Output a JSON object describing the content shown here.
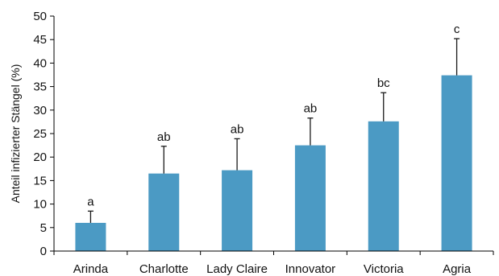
{
  "chart_data": {
    "type": "bar",
    "title": "",
    "xlabel": "",
    "ylabel": "Anteil infizierter Stängel (%)",
    "ylim": [
      0,
      50
    ],
    "yticks": [
      0,
      5,
      10,
      15,
      20,
      25,
      30,
      35,
      40,
      45,
      50
    ],
    "grid": false,
    "categories": [
      "Arinda",
      "Charlotte",
      "Lady Claire",
      "Innovator",
      "Victoria",
      "Agria"
    ],
    "values": [
      6.0,
      16.5,
      17.2,
      22.5,
      27.6,
      37.4
    ],
    "error_upper": [
      8.5,
      22.3,
      23.9,
      28.3,
      33.7,
      45.2
    ],
    "significance_labels": [
      "a",
      "ab",
      "ab",
      "ab",
      "bc",
      "c"
    ],
    "bar_color": "#4b9ac4"
  }
}
